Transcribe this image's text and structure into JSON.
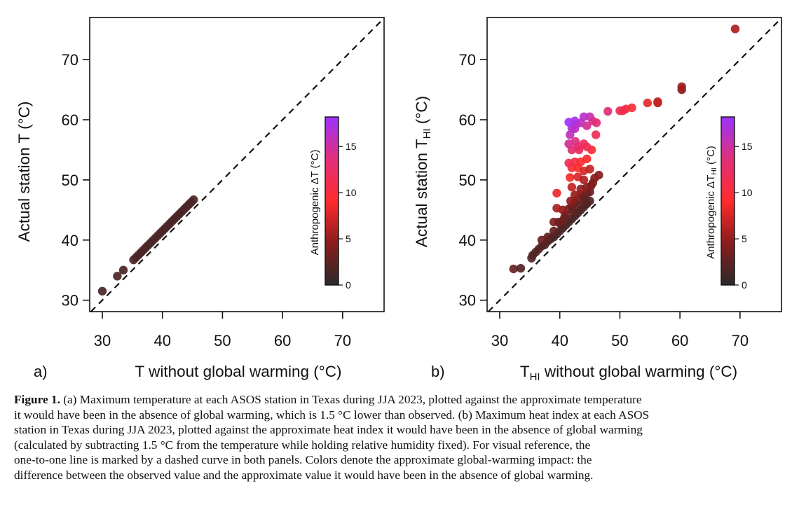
{
  "chart_data": [
    {
      "type": "scatter",
      "panel_label": "a)",
      "xlabel": "T without global warming  (°C)",
      "ylabel": "Actual station T  (°C)",
      "xlim": [
        27.9,
        76.9
      ],
      "ylim": [
        28.1,
        77.0
      ],
      "xticks": [
        "30",
        "40",
        "50",
        "60",
        "70"
      ],
      "yticks": [
        "30",
        "40",
        "50",
        "60",
        "70"
      ],
      "reference_line": "one-to-one dashed",
      "colorbar": {
        "label": "Anthropogenic ΔT (°C)",
        "ticks": [
          "0",
          "5",
          "10",
          "15"
        ],
        "range": [
          0,
          18.2
        ],
        "colors": [
          "#2a2a2a",
          "#8a1c1c",
          "#ff2b2b",
          "#e02f7a",
          "#9b33ff"
        ]
      },
      "points": [
        [
          30.0,
          31.5
        ],
        [
          32.5,
          34.0
        ],
        [
          33.5,
          35.0
        ],
        [
          35.2,
          36.7
        ],
        [
          35.6,
          37.1
        ],
        [
          36.0,
          37.5
        ],
        [
          36.4,
          37.9
        ],
        [
          36.8,
          38.3
        ],
        [
          37.2,
          38.7
        ],
        [
          37.6,
          39.1
        ],
        [
          38.0,
          39.5
        ],
        [
          38.4,
          39.9
        ],
        [
          38.8,
          40.3
        ],
        [
          39.2,
          40.7
        ],
        [
          39.6,
          41.1
        ],
        [
          40.0,
          41.5
        ],
        [
          40.4,
          41.9
        ],
        [
          40.8,
          42.3
        ],
        [
          41.2,
          42.7
        ],
        [
          41.6,
          43.1
        ],
        [
          42.0,
          43.5
        ],
        [
          42.4,
          43.9
        ],
        [
          42.8,
          44.3
        ],
        [
          43.2,
          44.7
        ],
        [
          43.6,
          45.1
        ],
        [
          44.0,
          45.5
        ],
        [
          44.4,
          45.9
        ],
        [
          44.8,
          46.3
        ],
        [
          45.2,
          46.7
        ]
      ]
    },
    {
      "type": "scatter",
      "panel_label": "b)",
      "xlabel": "T",
      "xlabel_sub": "HI",
      "xlabel_rest": " without global warming  (°C)",
      "ylabel": "Actual station T",
      "ylabel_sub": "HI",
      "ylabel_rest": "  (°C)",
      "xlim": [
        27.9,
        76.9
      ],
      "ylim": [
        28.1,
        77.0
      ],
      "xticks": [
        "30",
        "40",
        "50",
        "60",
        "70"
      ],
      "yticks": [
        "30",
        "40",
        "50",
        "60",
        "70"
      ],
      "reference_line": "one-to-one dashed",
      "colorbar": {
        "label": "Anthropogenic ΔT",
        "label_sub": "HI",
        "label_rest": " (°C)",
        "ticks": [
          "0",
          "5",
          "10",
          "15"
        ],
        "range": [
          0,
          18.2
        ],
        "colors": [
          "#2a2a2a",
          "#8a1c1c",
          "#ff2b2b",
          "#e02f7a",
          "#9b33ff"
        ]
      },
      "points": [
        [
          32.3,
          35.2
        ],
        [
          33.5,
          35.3
        ],
        [
          35.3,
          37.0
        ],
        [
          35.5,
          37.5
        ],
        [
          36.0,
          38.0
        ],
        [
          36.5,
          38.5
        ],
        [
          37.0,
          39.0
        ],
        [
          37.5,
          39.2
        ],
        [
          38.0,
          39.8
        ],
        [
          38.5,
          40.2
        ],
        [
          39.0,
          40.5
        ],
        [
          39.5,
          41.0
        ],
        [
          40.0,
          41.5
        ],
        [
          40.5,
          42.0
        ],
        [
          41.0,
          42.5
        ],
        [
          41.5,
          43.0
        ],
        [
          42.0,
          43.5
        ],
        [
          42.5,
          44.0
        ],
        [
          43.0,
          44.5
        ],
        [
          43.5,
          45.0
        ],
        [
          44.0,
          45.5
        ],
        [
          44.5,
          46.0
        ],
        [
          45.0,
          46.5
        ],
        [
          40.5,
          43.2
        ],
        [
          41.0,
          44.2
        ],
        [
          41.5,
          45.2
        ],
        [
          42.0,
          45.5
        ],
        [
          42.5,
          46.2
        ],
        [
          43.0,
          46.8
        ],
        [
          43.5,
          47.5
        ],
        [
          44.0,
          47.2
        ],
        [
          44.5,
          47.8
        ],
        [
          45.0,
          48.0
        ],
        [
          40.0,
          42.8
        ],
        [
          39.0,
          41.5
        ],
        [
          38.0,
          40.5
        ],
        [
          37.0,
          40.0
        ],
        [
          41.8,
          46.5
        ],
        [
          42.5,
          47.5
        ],
        [
          43.2,
          45.8
        ],
        [
          42.2,
          44.8
        ],
        [
          40.8,
          43.8
        ],
        [
          44.2,
          46.5
        ],
        [
          45.8,
          50.3
        ],
        [
          46.5,
          50.8
        ],
        [
          45.2,
          49.0
        ],
        [
          39.0,
          43.0
        ],
        [
          39.8,
          43.0
        ],
        [
          40.5,
          45.0
        ],
        [
          39.5,
          45.3
        ],
        [
          39.5,
          47.8
        ],
        [
          42.0,
          48.8
        ],
        [
          43.5,
          48.5
        ],
        [
          44.5,
          48.8
        ],
        [
          45.5,
          49.5
        ],
        [
          41.7,
          50.4
        ],
        [
          43.0,
          50.5
        ],
        [
          44.0,
          50.0
        ],
        [
          42.0,
          52.0
        ],
        [
          43.0,
          52.0
        ],
        [
          44.0,
          51.5
        ],
        [
          45.0,
          51.8
        ],
        [
          41.5,
          52.8
        ],
        [
          42.5,
          53.0
        ],
        [
          43.5,
          53.0
        ],
        [
          44.5,
          53.5
        ],
        [
          42.0,
          55.0
        ],
        [
          43.2,
          55.0
        ],
        [
          45.3,
          55.0
        ],
        [
          44.5,
          55.5
        ],
        [
          43.0,
          55.5
        ],
        [
          44.0,
          56.0
        ],
        [
          41.5,
          56.0
        ],
        [
          42.6,
          56.4
        ],
        [
          41.7,
          57.5
        ],
        [
          46.0,
          57.5
        ],
        [
          42.0,
          58.6
        ],
        [
          42.5,
          58.5
        ],
        [
          42.8,
          59.3
        ],
        [
          41.5,
          59.6
        ],
        [
          42.5,
          59.8
        ],
        [
          43.5,
          59.5
        ],
        [
          44.5,
          59.0
        ],
        [
          44.0,
          60.5
        ],
        [
          45.0,
          60.5
        ],
        [
          45.5,
          59.8
        ],
        [
          46.1,
          59.5
        ],
        [
          48.0,
          61.4
        ],
        [
          50.0,
          61.5
        ],
        [
          50.5,
          61.5
        ],
        [
          51.0,
          61.8
        ],
        [
          52.0,
          62.0
        ],
        [
          54.6,
          62.8
        ],
        [
          56.3,
          62.8
        ],
        [
          56.3,
          63.0
        ],
        [
          60.3,
          65.0
        ],
        [
          60.3,
          65.5
        ],
        [
          69.2,
          75.1
        ]
      ]
    }
  ],
  "caption": {
    "label": "Figure 1.",
    "lines": [
      " (a) Maximum temperature at each ASOS station in Texas during JJA 2023, plotted against the approximate temperature",
      "it would have been in the absence of global warming, which is 1.5 °C lower than observed. (b) Maximum heat index at each ASOS",
      "station in Texas during JJA 2023, plotted against the approximate heat index it would have been in the absence of global warming",
      "(calculated by subtracting 1.5 °C from the temperature while holding relative humidity fixed). For visual reference, the",
      "one-to-one line is marked by a dashed curve in both panels. Colors denote the approximate global-warming impact: the",
      "difference between the observed value and the approximate value it would have been in the absence of global warming."
    ]
  }
}
